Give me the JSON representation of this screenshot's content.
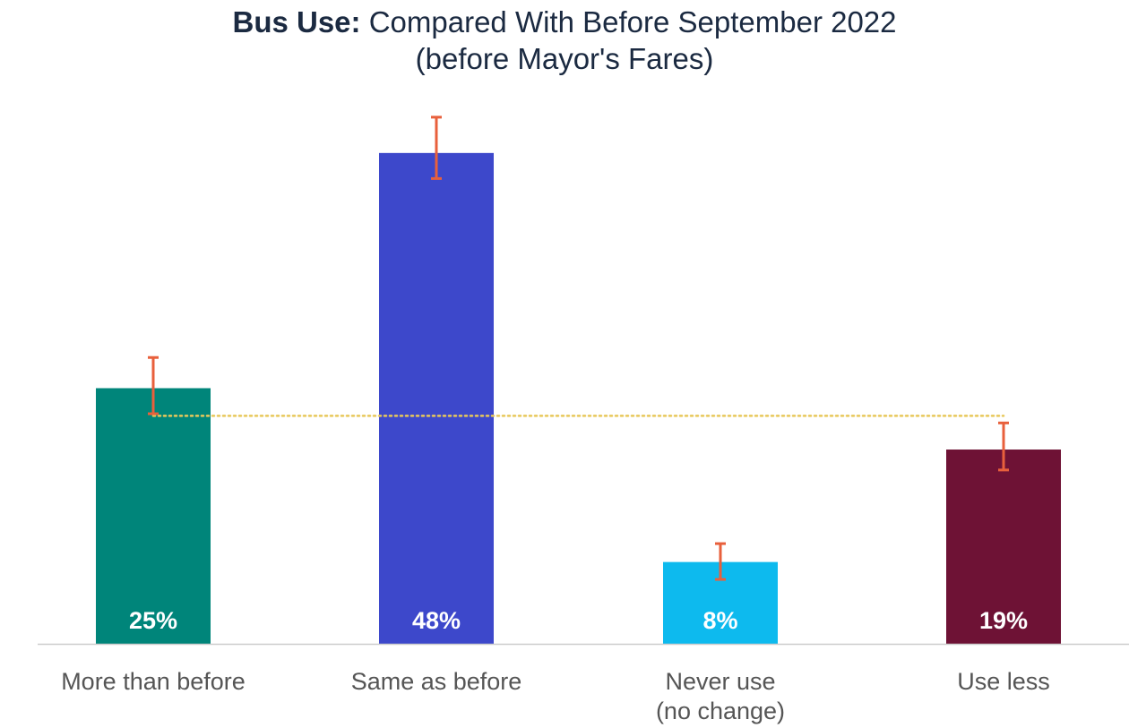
{
  "chart_data": {
    "type": "bar",
    "title_bold": "Bus Use:",
    "title_rest": " Compared With Before September 2022",
    "subtitle": "(before Mayor's Fares)",
    "categories": [
      [
        "More than before"
      ],
      [
        "Same as before"
      ],
      [
        "Never use",
        "(no change)"
      ],
      [
        "Use less"
      ]
    ],
    "values": [
      25,
      48,
      8,
      19
    ],
    "data_labels": [
      "25%",
      "48%",
      "8%",
      "19%"
    ],
    "error_bars": [
      {
        "low": 22.5,
        "high": 28
      },
      {
        "low": 45.5,
        "high": 51.5
      },
      {
        "low": 6.3,
        "high": 9.8
      },
      {
        "low": 17,
        "high": 21.6
      }
    ],
    "reference_line": {
      "value": 22.3,
      "style": "dotted",
      "color": "#e8c85a"
    },
    "colors": [
      "#00857a",
      "#3d48cb",
      "#0dbaee",
      "#6e1235"
    ],
    "error_bar_color": "#e8603c",
    "axis_color": "#cccccc",
    "ylim": [
      0,
      51.5
    ],
    "legend": "none",
    "grid": false
  }
}
